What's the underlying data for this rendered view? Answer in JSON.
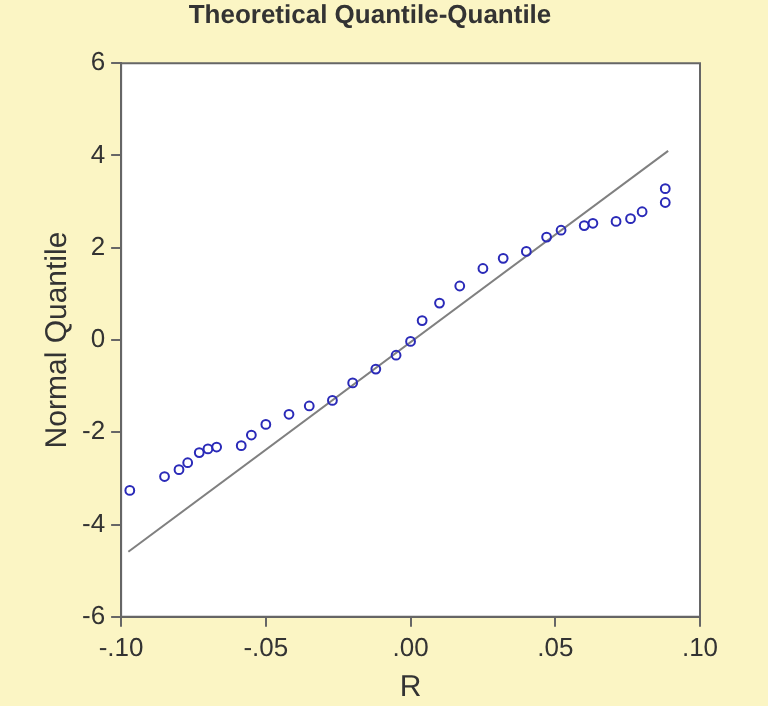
{
  "chart_data": {
    "type": "scatter",
    "title": "Theoretical Quantile-Quantile",
    "xlabel": "R",
    "ylabel": "Normal Quantile",
    "xlim": [
      -0.1,
      0.1
    ],
    "xticks": [
      {
        "value": -0.1,
        "label": "-.10"
      },
      {
        "value": -0.05,
        "label": "-.05"
      },
      {
        "value": 0,
        "label": ".00"
      },
      {
        "value": 0.05,
        "label": ".05"
      },
      {
        "value": 0.1,
        "label": ".10"
      }
    ],
    "ylim": [
      -6,
      6
    ],
    "yticks": [
      -6,
      -4,
      -2,
      0,
      2,
      4,
      6
    ],
    "grid": false,
    "legend": false,
    "series": [
      {
        "type": "scatter",
        "marker": "circle",
        "color": "#2a2ab8",
        "x": [
          -0.097,
          -0.085,
          -0.08,
          -0.077,
          -0.073,
          -0.07,
          -0.067,
          -0.0585,
          -0.055,
          -0.05,
          -0.042,
          -0.035,
          -0.027,
          -0.02,
          -0.012,
          -0.005,
          0.0,
          0.004,
          0.01,
          0.017,
          0.025,
          0.032,
          0.04,
          0.047,
          0.052,
          0.06,
          0.063,
          0.071,
          0.076,
          0.08,
          0.088,
          0.088
        ],
        "values": [
          -3.26,
          -2.96,
          -2.81,
          -2.66,
          -2.44,
          -2.36,
          -2.32,
          -2.29,
          -2.06,
          -1.83,
          -1.61,
          -1.43,
          -1.31,
          -0.93,
          -0.63,
          -0.33,
          -0.03,
          0.42,
          0.8,
          1.17,
          1.55,
          1.77,
          1.92,
          2.23,
          2.38,
          2.48,
          2.53,
          2.57,
          2.63,
          2.78,
          2.98,
          3.28
        ]
      },
      {
        "type": "line",
        "marker": "none",
        "color": "#808080",
        "x": [
          -0.0975,
          0.089
        ],
        "values": [
          -4.59,
          4.1
        ]
      }
    ]
  }
}
